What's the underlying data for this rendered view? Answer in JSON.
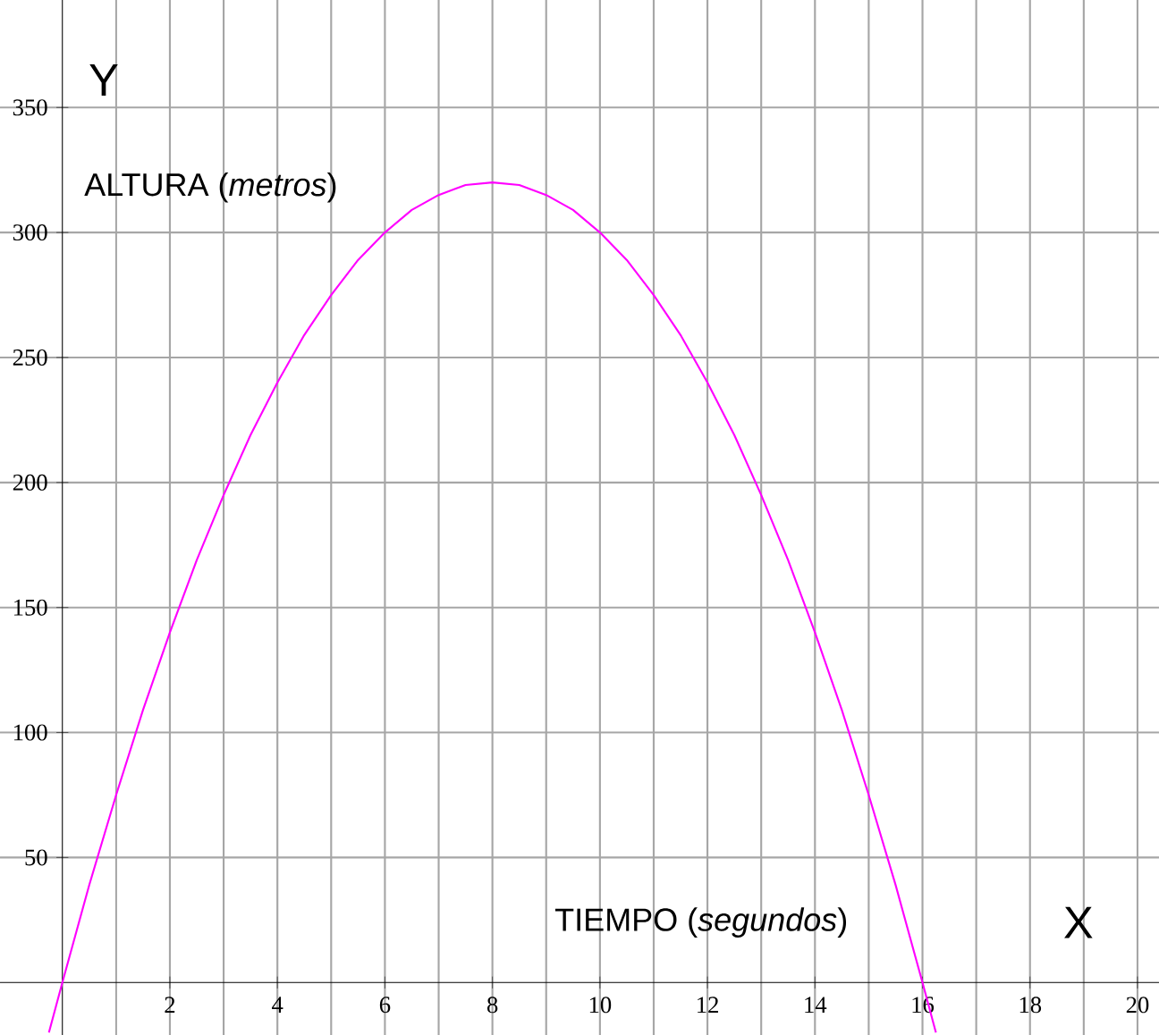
{
  "chart_data": {
    "type": "line",
    "xlabel": "X",
    "ylabel": "Y",
    "annotations": [
      "ALTURA  (*metros*)",
      "TIEMPO  (*segundos*)"
    ],
    "x": [
      -0.25,
      0,
      0.5,
      1,
      1.5,
      2,
      2.5,
      3,
      3.5,
      4,
      4.5,
      5,
      5.5,
      6,
      6.5,
      7,
      7.5,
      8,
      8.5,
      9,
      9.5,
      10,
      10.5,
      11,
      11.5,
      12,
      12.5,
      13,
      13.5,
      14,
      14.5,
      15,
      15.5,
      16,
      16.25
    ],
    "series": [
      {
        "color": "#ff00ff",
        "values": [
          -20,
          0,
          39,
          75,
          109,
          140,
          169,
          195,
          219,
          240,
          259,
          275,
          289,
          300,
          309,
          315,
          319,
          320,
          319,
          315,
          309,
          300,
          289,
          275,
          259,
          240,
          219,
          195,
          169,
          140,
          109,
          75,
          39,
          0,
          -20
        ]
      }
    ],
    "xlim": [
      -1.16,
      20.4
    ],
    "ylim": [
      -21,
      393
    ],
    "xticks": [
      {
        "value": 1,
        "label": null
      },
      2,
      {
        "value": 3,
        "label": null
      },
      4,
      {
        "value": 5,
        "label": null
      },
      6,
      {
        "value": 7,
        "label": null
      },
      8,
      {
        "value": 9,
        "label": null
      },
      10,
      {
        "value": 11,
        "label": null
      },
      12,
      {
        "value": 13,
        "label": null
      },
      14,
      {
        "value": 15,
        "label": null
      },
      16,
      {
        "value": 17,
        "label": null
      },
      18,
      {
        "value": 19,
        "label": null
      },
      20
    ],
    "yticks": [
      50,
      100,
      150,
      200,
      250,
      300,
      350
    ],
    "grid": true,
    "marker": "none",
    "line_style": "solid"
  }
}
